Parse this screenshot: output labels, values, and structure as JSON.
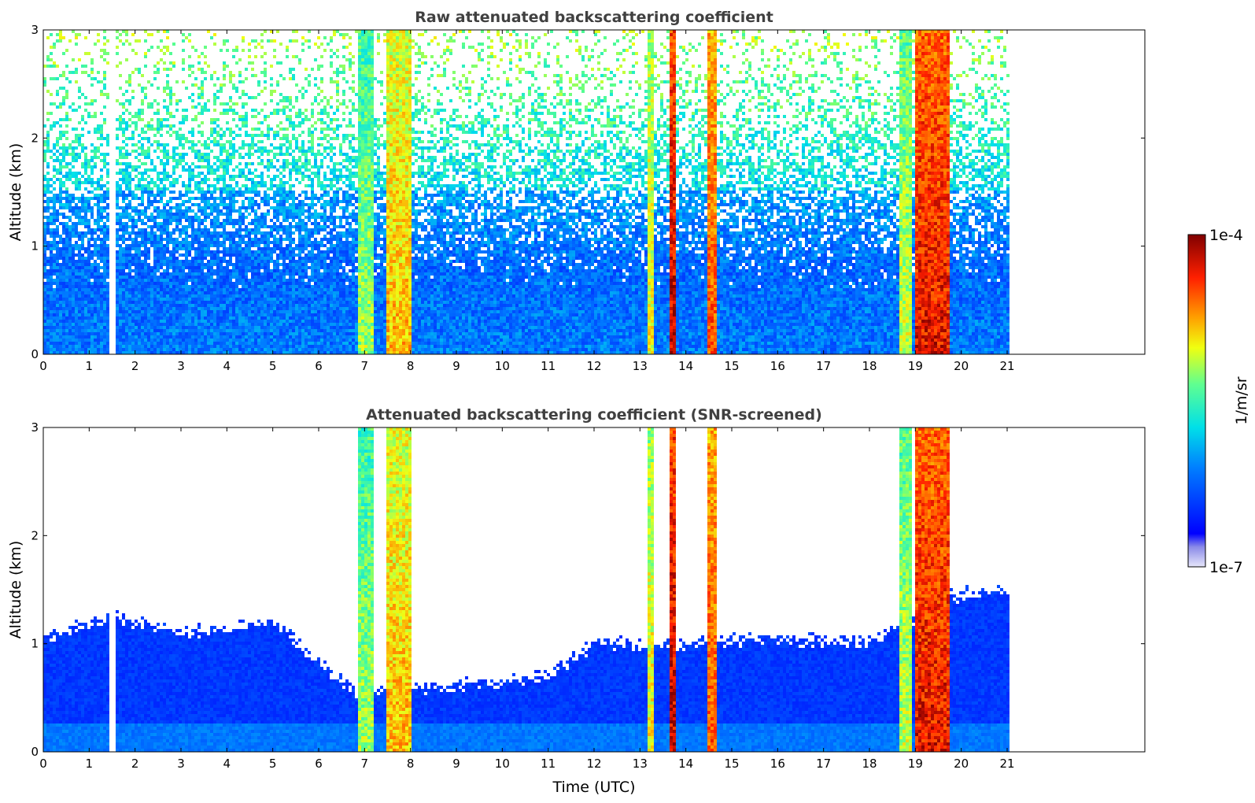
{
  "chart_data": [
    {
      "type": "heatmap",
      "title": "Raw attenuated backscattering coefficient",
      "xlabel": "",
      "ylabel": "Altitude (km)",
      "xlim": [
        0,
        24
      ],
      "ylim": [
        0,
        3
      ],
      "data_extent_x": [
        0,
        21.1
      ],
      "x_ticks": [
        "0",
        "1",
        "2",
        "3",
        "4",
        "5",
        "6",
        "7",
        "8",
        "9",
        "10",
        "11",
        "12",
        "13",
        "14",
        "15",
        "16",
        "17",
        "18",
        "19",
        "20",
        "21"
      ],
      "y_ticks": [
        "0",
        "1",
        "2",
        "3"
      ],
      "data_gap": [
        1.45,
        1.55
      ],
      "snr_screened": false,
      "columns": [
        {
          "t": 6.85,
          "w": 0.35,
          "level": 0.62
        },
        {
          "t": 7.45,
          "w": 0.55,
          "level": 0.75
        },
        {
          "t": 13.15,
          "w": 0.12,
          "level": 0.7
        },
        {
          "t": 13.65,
          "w": 0.1,
          "level": 0.95
        },
        {
          "t": 14.5,
          "w": 0.18,
          "level": 0.85
        },
        {
          "t": 18.65,
          "w": 0.3,
          "level": 0.65
        },
        {
          "t": 19.0,
          "w": 0.75,
          "level": 0.92
        }
      ]
    },
    {
      "type": "heatmap",
      "title": "Attenuated backscattering coefficient (SNR-screened)",
      "xlabel": "Time (UTC)",
      "ylabel": "Altitude (km)",
      "xlim": [
        0,
        24
      ],
      "ylim": [
        0,
        3
      ],
      "data_extent_x": [
        0,
        21.1
      ],
      "x_ticks": [
        "0",
        "1",
        "2",
        "3",
        "4",
        "5",
        "6",
        "7",
        "8",
        "9",
        "10",
        "11",
        "12",
        "13",
        "14",
        "15",
        "16",
        "17",
        "18",
        "19",
        "20",
        "21"
      ],
      "y_ticks": [
        "0",
        "1",
        "2",
        "3"
      ],
      "data_gap": [
        1.45,
        1.55
      ],
      "snr_screened": true,
      "boundary_layer_top_km": [
        {
          "t": 0,
          "z": 1.05
        },
        {
          "t": 1.5,
          "z": 1.25
        },
        {
          "t": 3,
          "z": 1.1
        },
        {
          "t": 5,
          "z": 1.2
        },
        {
          "t": 6.8,
          "z": 0.55
        },
        {
          "t": 8.5,
          "z": 0.6
        },
        {
          "t": 10,
          "z": 0.65
        },
        {
          "t": 11,
          "z": 0.7
        },
        {
          "t": 12,
          "z": 1.0
        },
        {
          "t": 14,
          "z": 1.0
        },
        {
          "t": 16,
          "z": 1.05
        },
        {
          "t": 18,
          "z": 1.0
        },
        {
          "t": 19.8,
          "z": 1.45
        },
        {
          "t": 21.1,
          "z": 1.5
        }
      ],
      "columns": [
        {
          "t": 6.85,
          "w": 0.35,
          "level": 0.62
        },
        {
          "t": 7.45,
          "w": 0.55,
          "level": 0.75
        },
        {
          "t": 13.15,
          "w": 0.12,
          "level": 0.7
        },
        {
          "t": 13.65,
          "w": 0.1,
          "level": 0.95
        },
        {
          "t": 14.5,
          "w": 0.18,
          "level": 0.85
        },
        {
          "t": 18.65,
          "w": 0.3,
          "level": 0.65
        },
        {
          "t": 19.0,
          "w": 0.75,
          "level": 0.92
        }
      ]
    }
  ],
  "colorbar": {
    "label": "1/m/sr",
    "max_label": "1e-4",
    "min_label": "1e-7",
    "colormap": "jet"
  }
}
